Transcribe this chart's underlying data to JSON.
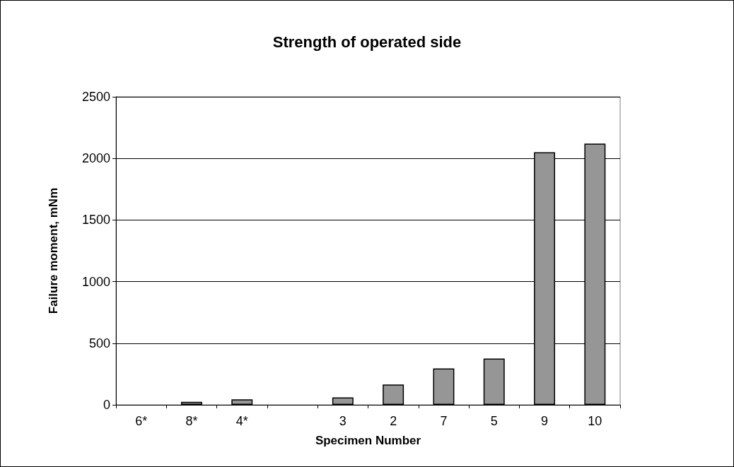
{
  "chart_data": {
    "type": "bar",
    "title": "Strength of operated side",
    "xlabel": "Specimen Number",
    "ylabel": "Failure moment, mNm",
    "categories": [
      "6*",
      "8*",
      "4*",
      null,
      "3",
      "2",
      "7",
      "5",
      "9",
      "10"
    ],
    "values": [
      null,
      25,
      45,
      null,
      60,
      165,
      295,
      375,
      2050,
      2120
    ],
    "color": "#969696",
    "ylim": [
      0,
      2500
    ],
    "yticks": [
      0,
      500,
      1000,
      1500,
      2000,
      2500
    ],
    "grid": "y"
  }
}
